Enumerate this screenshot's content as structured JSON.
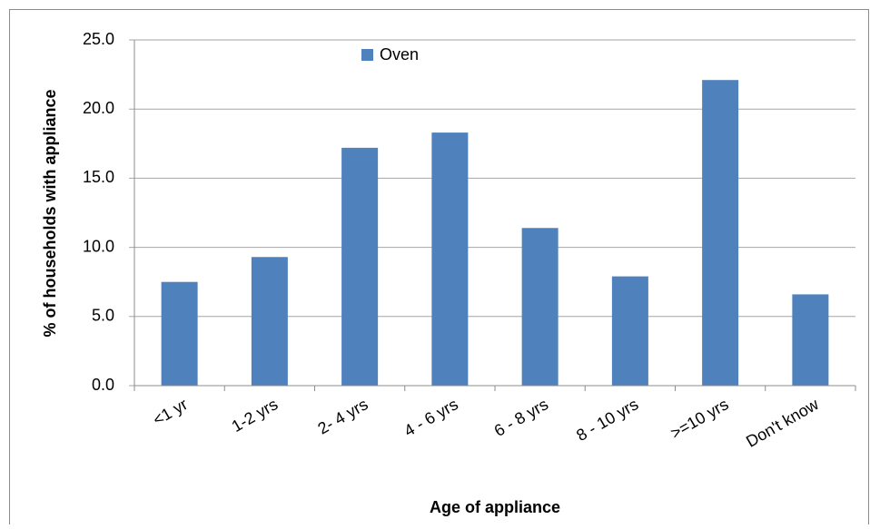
{
  "chart_data": {
    "type": "bar",
    "y_label": "% of households with appliance",
    "x_label": "Age of appliance",
    "categories": [
      "<1 yr",
      "1-2 yrs",
      "2- 4 yrs",
      "4 - 6 yrs",
      "6 - 8 yrs",
      "8 - 10 yrs",
      ">=10 yrs",
      "Don't know"
    ],
    "series": [
      {
        "name": "Oven",
        "color": "#4f81bd",
        "values": [
          7.5,
          9.3,
          17.2,
          18.3,
          11.4,
          7.9,
          22.1,
          6.6
        ]
      }
    ],
    "ylim": [
      0,
      25
    ],
    "yticks": [
      {
        "value": 0,
        "label": "0.0"
      },
      {
        "value": 5,
        "label": "5.0"
      },
      {
        "value": 10,
        "label": "10.0"
      },
      {
        "value": 15,
        "label": "15.0"
      },
      {
        "value": 20,
        "label": "20.0"
      },
      {
        "value": 25,
        "label": "25.0"
      }
    ],
    "grid": true
  }
}
